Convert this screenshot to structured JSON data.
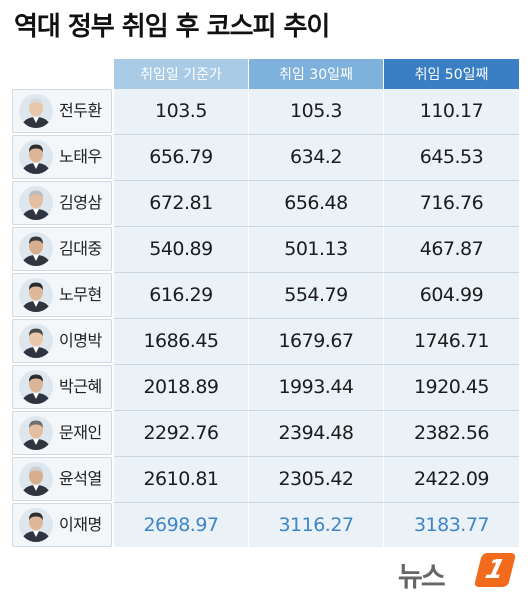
{
  "title": "역대 정부 취임 후 코스피 추이",
  "headers": [
    "취임일 기준가",
    "취임 30일째",
    "취임 50일째"
  ],
  "header_colors": [
    "#a9cbe6",
    "#7fb1dd",
    "#3a7fc4"
  ],
  "rows": [
    {
      "name": "전두환",
      "values": [
        "103.5",
        "105.3",
        "110.17"
      ]
    },
    {
      "name": "노태우",
      "values": [
        "656.79",
        "634.2",
        "645.53"
      ]
    },
    {
      "name": "김영삼",
      "values": [
        "672.81",
        "656.48",
        "716.76"
      ]
    },
    {
      "name": "김대중",
      "values": [
        "540.89",
        "501.13",
        "467.87"
      ]
    },
    {
      "name": "노무현",
      "values": [
        "616.29",
        "554.79",
        "604.99"
      ]
    },
    {
      "name": "이명박",
      "values": [
        "1686.45",
        "1679.67",
        "1746.71"
      ]
    },
    {
      "name": "박근혜",
      "values": [
        "2018.89",
        "1993.44",
        "1920.45"
      ]
    },
    {
      "name": "문재인",
      "values": [
        "2292.76",
        "2394.48",
        "2382.56"
      ]
    },
    {
      "name": "윤석열",
      "values": [
        "2610.81",
        "2305.42",
        "2422.09"
      ]
    },
    {
      "name": "이재명",
      "values": [
        "2698.97",
        "3116.27",
        "3183.77"
      ],
      "highlight": true
    }
  ],
  "highlight_color": "#3f86c6",
  "logo": {
    "text": "뉴스",
    "mark": "1",
    "color": "#f26b1d"
  }
}
